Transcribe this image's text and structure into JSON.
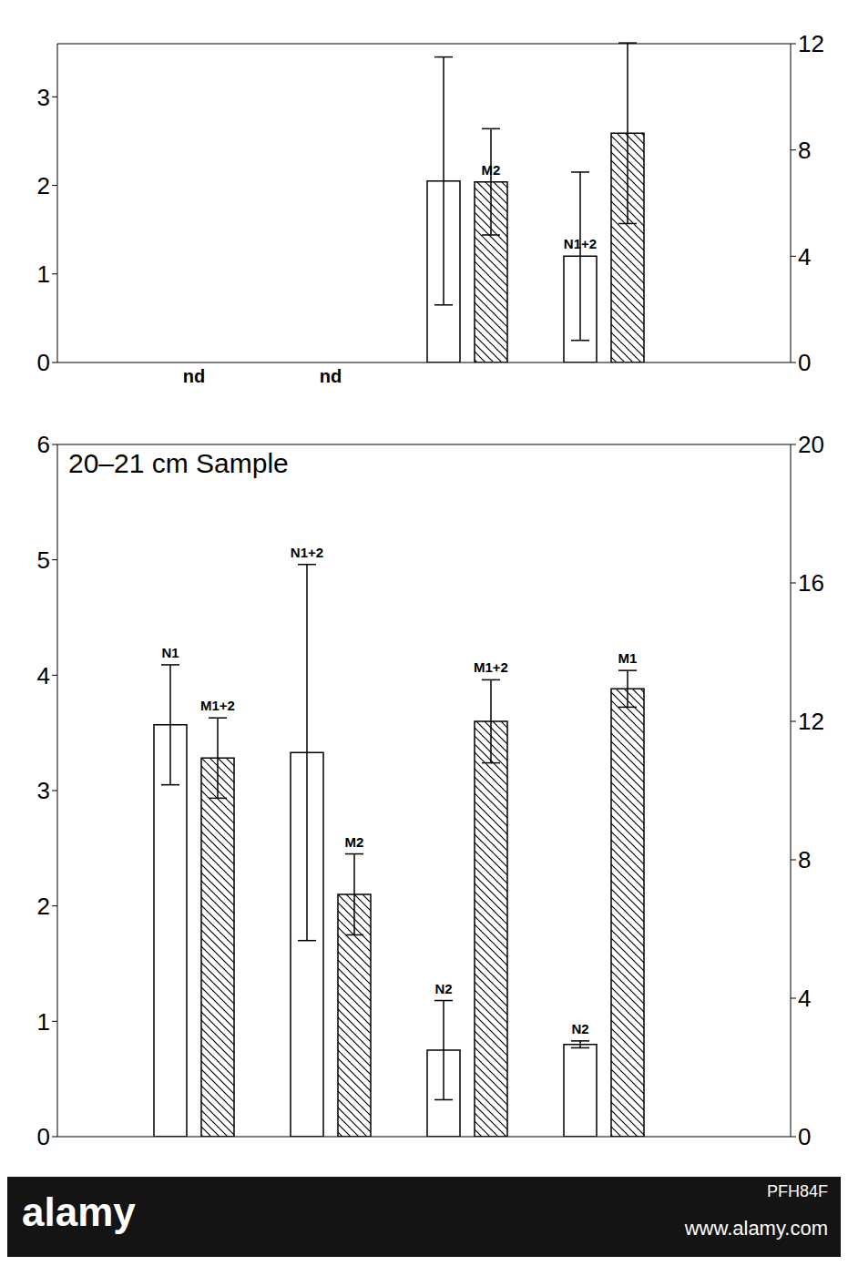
{
  "chart_data": [
    {
      "type": "bar",
      "categories": [
        "nd",
        "nd",
        null,
        null
      ],
      "ylim": [
        0,
        3.6
      ],
      "yticks": [
        0,
        1,
        2,
        3
      ],
      "y2lim": [
        0,
        12
      ],
      "y2ticks": [
        0,
        4,
        8,
        12
      ],
      "series": [
        {
          "color": "#ffffff",
          "values": [
            null,
            null,
            2.05,
            1.2
          ],
          "errors": [
            null,
            null,
            1.4,
            0.95
          ],
          "labels": [
            null,
            null,
            null,
            "N1+2"
          ]
        },
        {
          "color": "#000000",
          "axis": "y2",
          "values": [
            null,
            null,
            6.8,
            8.63
          ],
          "errors": [
            null,
            null,
            2.0,
            3.4
          ],
          "labels": [
            null,
            null,
            "M2",
            null
          ]
        }
      ]
    },
    {
      "type": "bar",
      "title": "20–21 cm Sample",
      "categories": [
        null,
        null,
        null,
        null
      ],
      "ylim": [
        0,
        6
      ],
      "yticks": [
        0,
        1,
        2,
        3,
        4,
        5,
        6
      ],
      "y2lim": [
        0,
        20
      ],
      "y2ticks": [
        0,
        4,
        8,
        12,
        16,
        20
      ],
      "series": [
        {
          "color": "#ffffff",
          "values": [
            3.57,
            3.33,
            0.75,
            0.8
          ],
          "errors": [
            0.52,
            1.63,
            0.43,
            0.03
          ],
          "labels": [
            "N1",
            "N1+2",
            "N2",
            "N2"
          ]
        },
        {
          "color": "#000000",
          "axis": "y2",
          "values": [
            10.94,
            7.0,
            12.0,
            12.94
          ],
          "errors": [
            1.16,
            1.17,
            1.2,
            0.53
          ],
          "labels": [
            "M1+2",
            "M2",
            "M1+2",
            "M1"
          ]
        }
      ]
    }
  ],
  "watermark": {
    "logo": "alamy",
    "id": "PFH84F",
    "url": "www.alamy.com"
  }
}
